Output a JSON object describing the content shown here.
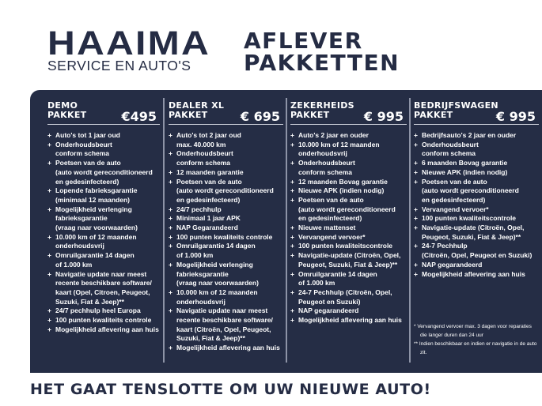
{
  "brand": {
    "name": "HAAIMA",
    "subtitle": "SERVICE EN AUTO'S"
  },
  "title": {
    "line1": "AFLEVER",
    "line2": "PAKKETTEN"
  },
  "packages": [
    {
      "name1": "DEMO",
      "name2": "PAKKET",
      "price": "€495",
      "items": [
        "Auto's tot 1 jaar oud",
        "Onderhoudsbeurt\nconform schema",
        "Poetsen van de auto\n(auto wordt gereconditioneerd\nen gedesinfecteerd)",
        "Lopende fabrieksgarantie\n(minimaal 12 maanden)",
        "Mogelijkheid verlenging\nfabrieksgarantie\n(vraag naar voorwaarden)",
        "10.000 km of 12 maanden\nonderhoudsvrij",
        "Omruilgarantie 14 dagen\nof 1.000 km",
        "Navigatie update naar meest\nrecente beschikbare software/\nkaart (Opel, Citroen,  Peugeot,\nSuzuki, Fiat & Jeep)**",
        "24/7 pechhulp heel Europa",
        "100 punten kwaliteits controle",
        "Mogelijkheid aflevering aan huis"
      ]
    },
    {
      "name1": "DEALER XL",
      "name2": "PAKKET",
      "price": "€ 695",
      "items": [
        "Auto's tot 2 jaar oud\nmax. 40.000 km",
        "Onderhoudsbeurt\nconform schema",
        "12 maanden garantie",
        "Poetsen van de auto\n(auto wordt gereconditioneerd\nen gedesinfecteerd)",
        "24/7 pechhulp",
        "Minimaal 1 jaar APK",
        "NAP Gegarandeerd",
        "100 punten kwaliteits controle",
        "Omruilgarantie 14 dagen\nof 1.000 km",
        "Mogelijkheid verlenging\nfabrieksgarantie\n(vraag naar voorwaarden)",
        "10.000 km of 12 maanden\nonderhoudsvrij",
        "Navigatie update naar meest\nrecente beschikbare software/\nkaart (Citroën, Opel, Peugeot,\nSuzuki, Fiat & Jeep)**",
        "Mogelijkheid aflevering aan huis"
      ]
    },
    {
      "name1": "ZEKERHEIDS",
      "name2": "PAKKET",
      "price": "€ 995",
      "items": [
        "Auto's 2 jaar en ouder",
        "10.000 km of 12 maanden\nonderhoudsvrij",
        "Onderhoudsbeurt\nconform schema",
        "12 maanden Bovag garantie",
        "Nieuwe APK (indien nodig)",
        "Poetsen van de auto\n(auto wordt gereconditioneerd\nen gedesinfecteerd)",
        "Nieuwe mattenset",
        "Vervangend vervoer*",
        "100 punten kwaliteitscontrole",
        "Navigatie-update (Citroën, Opel,\nPeugeot, Suzuki, Fiat & Jeep)**",
        "Omruilgarantie 14 dagen\nof 1.000 km",
        "24-7 Pechhulp (Citroën, Opel,\nPeugeot en Suzuki)",
        "NAP gegarandeerd",
        "Mogelijkheid aflevering aan huis"
      ]
    },
    {
      "name1": "BEDRIJFSWAGEN",
      "name2": "PAKKET",
      "price": "€ 995",
      "items": [
        "Bedrijfsauto's 2 jaar en ouder",
        "Onderhoudsbeurt\nconform schema",
        "6 maanden Bovag garantie",
        "Nieuwe APK (indien nodig)",
        "Poetsen van de auto\n(auto wordt gereconditioneerd\nen gedesinfecteerd)",
        "Vervangend vervoer*",
        "100 punten kwaliteitscontrole",
        "Navigatie-update (Citroën, Opel,\nPeugeot, Suzuki, Fiat & Jeep)**",
        "24-7 Pechhulp\n(Citroën, Opel, Peugeot en Suzuki)",
        "NAP gegarandeerd",
        "Mogelijkheid aflevering aan huis"
      ]
    }
  ],
  "footnotes": [
    "* Vervangend vervoer max. 3 dagen voor reparaties die langer duren dan 24 uur",
    "** Indien beschikbaar en indien er navigatie in de auto zit."
  ],
  "tagline": "HET GAAT TENSLOTTE OM UW NIEUWE AUTO!",
  "colors": {
    "navy": "#252d45",
    "white": "#ffffff"
  }
}
